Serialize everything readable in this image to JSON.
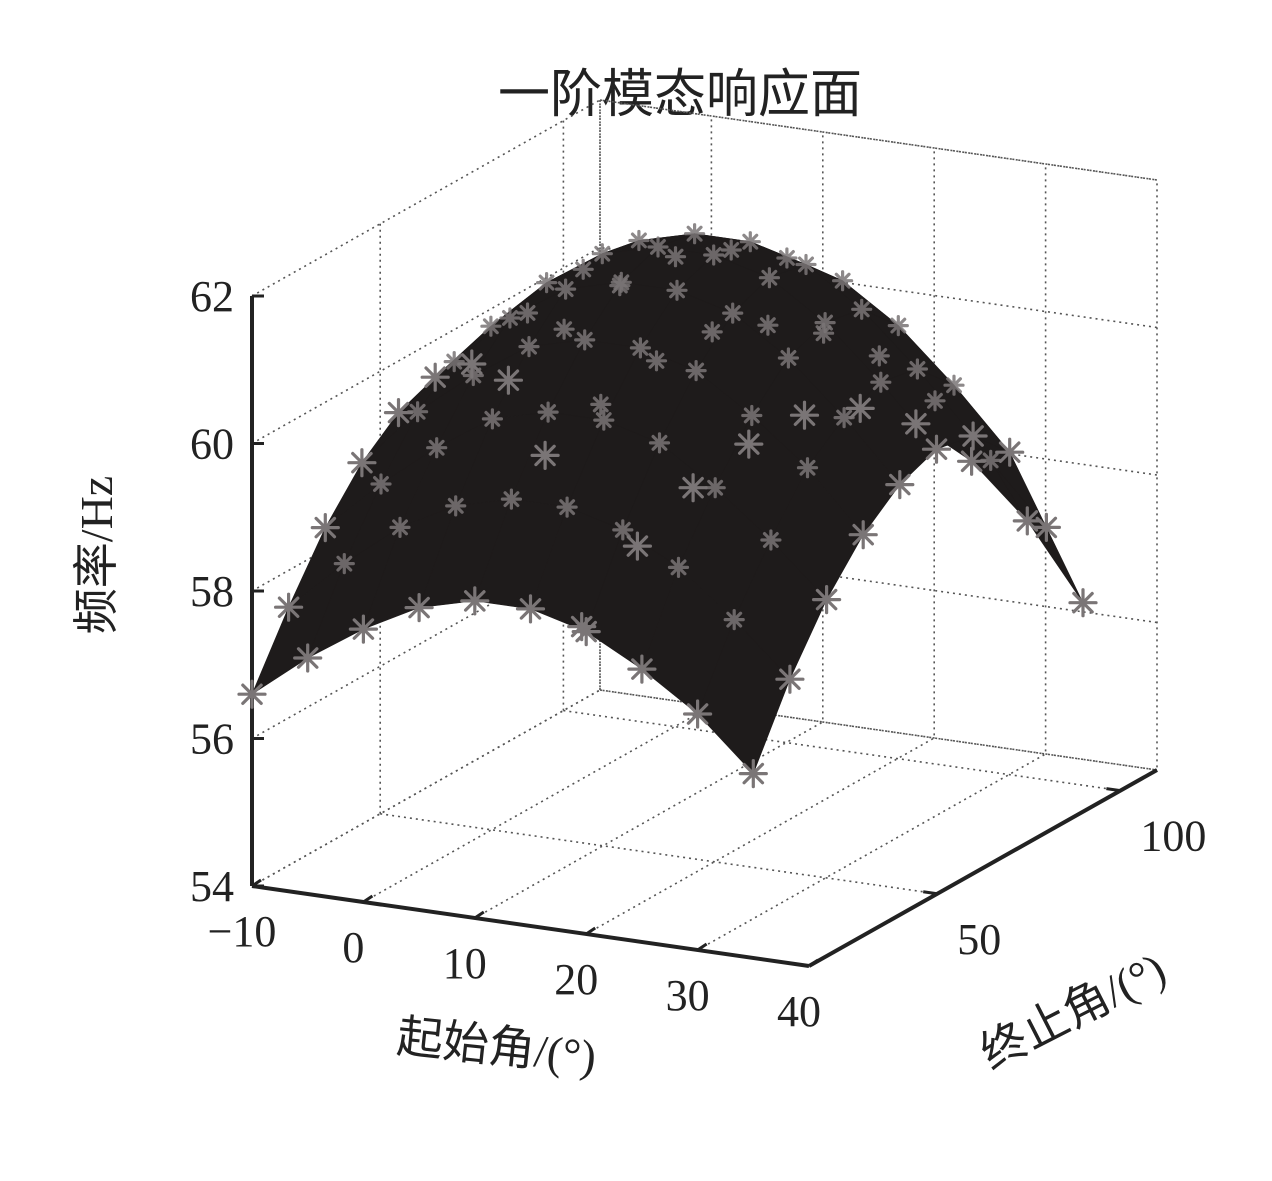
{
  "chart_data": {
    "type": "surface3d",
    "title": "一阶模态响应面",
    "xlabel": "起始角/(°)",
    "ylabel": "终止角/(°)",
    "zlabel": "频率/Hz",
    "x_ticks": [
      "−10",
      "0",
      "10",
      "20",
      "30",
      "40"
    ],
    "y_ticks": [
      "50",
      "100"
    ],
    "z_ticks": [
      "54",
      "56",
      "58",
      "60",
      "62"
    ],
    "xlim": [
      -10,
      40
    ],
    "ylim": [
      15,
      110
    ],
    "zlim": [
      54,
      62
    ],
    "grid": true,
    "colors": {
      "surface": "#1e1b1b",
      "markers": "#7a7576",
      "axes": "#222222"
    },
    "x": [
      -10,
      -5,
      0,
      5,
      10,
      15,
      20,
      25,
      30,
      35
    ],
    "y": [
      15,
      25,
      35,
      45,
      55,
      65,
      75,
      85,
      95,
      105
    ],
    "z": [
      [
        56.6,
        57.2,
        57.7,
        58.1,
        58.3,
        58.3,
        58.1,
        57.7,
        57.2,
        56.5
      ],
      [
        57.5,
        58.2,
        58.8,
        59.2,
        59.4,
        59.4,
        59.2,
        58.8,
        58.2,
        57.5
      ],
      [
        58.3,
        59.0,
        59.6,
        60.1,
        60.3,
        60.3,
        60.1,
        59.6,
        59.0,
        58.3
      ],
      [
        58.9,
        59.7,
        60.3,
        60.8,
        61.0,
        61.0,
        60.8,
        60.3,
        59.7,
        58.9
      ],
      [
        59.3,
        60.1,
        60.8,
        61.3,
        61.5,
        61.5,
        61.3,
        60.8,
        60.1,
        59.3
      ],
      [
        59.5,
        60.3,
        61.0,
        61.5,
        61.7,
        61.7,
        61.5,
        61.0,
        60.3,
        59.5
      ],
      [
        59.4,
        60.2,
        60.9,
        61.4,
        61.6,
        61.6,
        61.4,
        60.9,
        60.2,
        59.4
      ],
      [
        58.9,
        59.7,
        60.4,
        60.9,
        61.1,
        61.1,
        60.9,
        60.4,
        59.7,
        58.9
      ],
      [
        57.6,
        58.4,
        59.1,
        59.6,
        59.8,
        59.8,
        59.6,
        59.1,
        58.4,
        57.6
      ],
      [
        55.0,
        56.2,
        57.1,
        57.8,
        58.3,
        58.5,
        58.4,
        58.0,
        57.3,
        56.3
      ]
    ]
  }
}
